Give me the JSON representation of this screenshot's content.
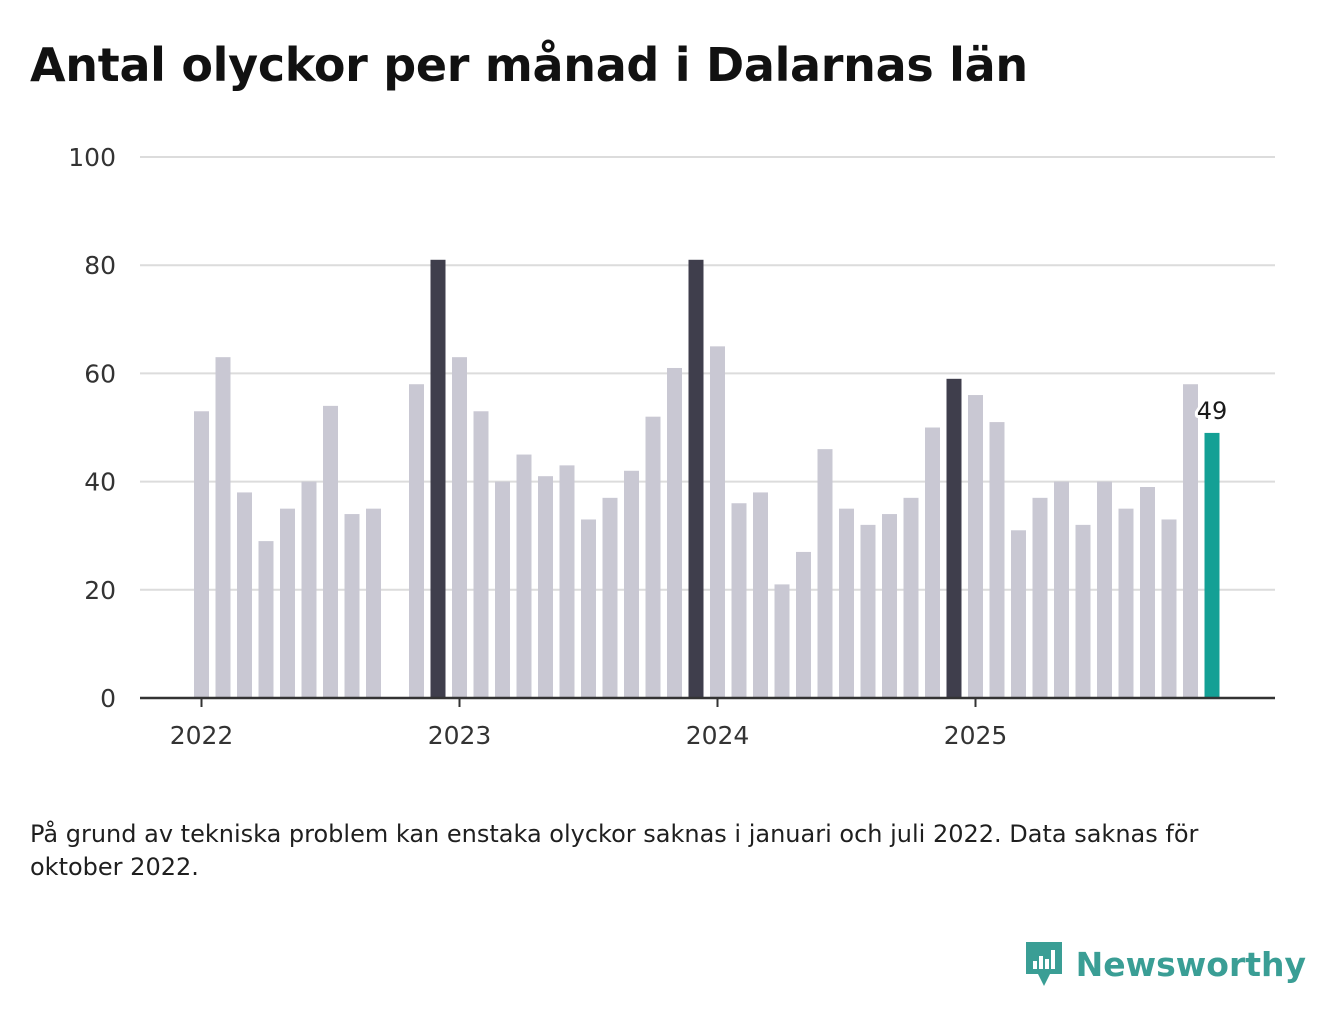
{
  "title": "Antal olyckor per månad i Dalarnas län",
  "note": "På grund av tekniska problem kan enstaka olyckor saknas i januari och juli 2022. Data saknas för oktober 2022.",
  "brand": {
    "name": "Newsworthy"
  },
  "colors": {
    "regular": "#c9c8d3",
    "december": "#3f3e4c",
    "latest": "#14a095",
    "grid": "#dcdcdc",
    "axis": "#333333"
  },
  "chart_data": {
    "type": "bar",
    "title": "Antal olyckor per månad i Dalarnas län",
    "xlabel": "",
    "ylabel": "",
    "ylim": [
      0,
      100
    ],
    "yticks": [
      "0",
      "20",
      "40",
      "60",
      "80",
      "100"
    ],
    "xticks": [
      "2022",
      "2023",
      "2024",
      "2025"
    ],
    "grid": true,
    "categories": [
      "2022-01",
      "2022-02",
      "2022-03",
      "2022-04",
      "2022-05",
      "2022-06",
      "2022-07",
      "2022-08",
      "2022-09",
      "2022-10",
      "2022-11",
      "2022-12",
      "2023-01",
      "2023-02",
      "2023-03",
      "2023-04",
      "2023-05",
      "2023-06",
      "2023-07",
      "2023-08",
      "2023-09",
      "2023-10",
      "2023-11",
      "2023-12",
      "2024-01",
      "2024-02",
      "2024-03",
      "2024-04",
      "2024-05",
      "2024-06",
      "2024-07",
      "2024-08",
      "2024-09",
      "2024-10",
      "2024-11",
      "2024-12",
      "2025-01",
      "2025-02",
      "2025-03",
      "2025-04",
      "2025-05",
      "2025-06",
      "2025-07",
      "2025-08",
      "2025-09",
      "2025-10",
      "2025-11",
      "2025-12"
    ],
    "values": [
      53,
      63,
      38,
      29,
      35,
      40,
      54,
      34,
      35,
      null,
      58,
      81,
      63,
      53,
      40,
      45,
      41,
      43,
      33,
      37,
      42,
      52,
      61,
      81,
      65,
      36,
      38,
      21,
      27,
      46,
      35,
      32,
      34,
      37,
      50,
      59,
      56,
      51,
      31,
      37,
      40,
      32,
      40,
      35,
      39,
      33,
      58,
      49
    ],
    "highlight": {
      "category": "2025-12",
      "label": "49"
    }
  }
}
